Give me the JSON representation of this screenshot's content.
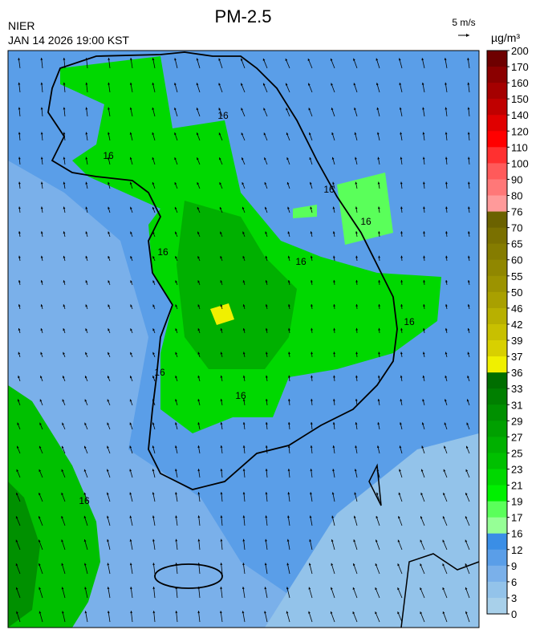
{
  "header": {
    "title": "PM-2.5",
    "agency": "NIER",
    "timestamp": "JAN 14 2026 19:00 KST",
    "wind_scale": "5 m/s"
  },
  "map": {
    "contour_labels": [
      "16",
      "16",
      "16",
      "16",
      "16",
      "16",
      "16",
      "16",
      "16",
      "16"
    ]
  },
  "legend": {
    "unit": "µg/m³",
    "levels": [
      200,
      170,
      160,
      150,
      140,
      120,
      110,
      100,
      90,
      80,
      76,
      70,
      65,
      60,
      55,
      50,
      46,
      42,
      39,
      37,
      36,
      33,
      31,
      29,
      27,
      25,
      23,
      21,
      19,
      17,
      16,
      12,
      9,
      6,
      3,
      0
    ],
    "colors": [
      "#6e0000",
      "#8b0000",
      "#a50000",
      "#c00000",
      "#e00000",
      "#ff0000",
      "#ff3030",
      "#ff5a5a",
      "#ff7878",
      "#ff9a9a",
      "#6b6200",
      "#7a7000",
      "#857c00",
      "#908700",
      "#9c9300",
      "#a9a000",
      "#b8b000",
      "#c8c000",
      "#d8d000",
      "#f0f000",
      "#006e00",
      "#007f00",
      "#009000",
      "#00a000",
      "#00b000",
      "#00c000",
      "#00d800",
      "#00f000",
      "#5aff5a",
      "#96ff96",
      "#3a8ee6",
      "#5a9ee8",
      "#7ab0ea",
      "#93c3ea",
      "#a8d0ea"
    ]
  }
}
